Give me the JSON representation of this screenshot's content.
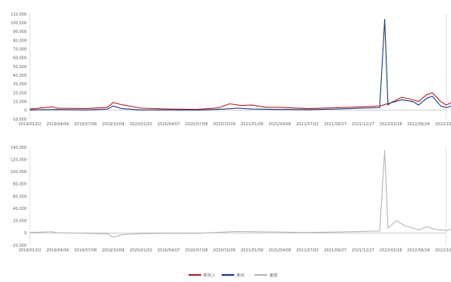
{
  "chart_data": [
    {
      "type": "line",
      "x_labels": [
        "2019/01/02",
        "2019/04/04",
        "2019/07/08",
        "2019/10/08",
        "2020/01/02",
        "2020/04/07",
        "2020/07/08",
        "2020/10/09",
        "2021/01/09",
        "2021/04/06",
        "2021/07/02",
        "2021/09/27",
        "2021/12/27",
        "2022/03/28",
        "2022/06/24",
        "2022/10/21"
      ],
      "ylim": [
        -10000,
        110000
      ],
      "yticks": [
        "-10,000",
        "0",
        "10,000",
        "20,000",
        "30,000",
        "40,000",
        "50,000",
        "60,000",
        "70,000",
        "80,000",
        "90,000",
        "100,000",
        "110,000"
      ],
      "ytick_values": [
        -10000,
        0,
        10000,
        20000,
        30000,
        40000,
        50000,
        60000,
        70000,
        80000,
        90000,
        100000,
        110000
      ],
      "grid": false,
      "series": [
        {
          "name": "新买入",
          "color": "#c0202c",
          "points": [
            [
              0,
              1500
            ],
            [
              0.8,
              4000
            ],
            [
              1,
              2500
            ],
            [
              2,
              2000
            ],
            [
              2.8,
              3500
            ],
            [
              3,
              9000
            ],
            [
              3.3,
              6500
            ],
            [
              4,
              2500
            ],
            [
              5,
              1500
            ],
            [
              6,
              1000
            ],
            [
              6.8,
              3000
            ],
            [
              7.2,
              7500
            ],
            [
              7.6,
              5500
            ],
            [
              8,
              6000
            ],
            [
              8.5,
              3500
            ],
            [
              9,
              3500
            ],
            [
              10,
              2000
            ],
            [
              11,
              3000
            ],
            [
              12,
              4000
            ],
            [
              12.6,
              5000
            ],
            [
              13,
              8500
            ],
            [
              13.4,
              15000
            ],
            [
              13.8,
              12000
            ],
            [
              14,
              10000
            ],
            [
              14.3,
              18000
            ],
            [
              14.5,
              20000
            ],
            [
              14.8,
              10000
            ],
            [
              15,
              6000
            ],
            [
              15.5,
              14000
            ],
            [
              15.8,
              9000
            ],
            [
              16,
              8000
            ]
          ]
        },
        {
          "name": "卖出",
          "color": "#1f3c88",
          "points": [
            [
              0,
              500
            ],
            [
              1,
              1000
            ],
            [
              2,
              500
            ],
            [
              2.8,
              1500
            ],
            [
              3,
              5000
            ],
            [
              3.3,
              2000
            ],
            [
              4,
              500
            ],
            [
              5,
              500
            ],
            [
              6,
              200
            ],
            [
              7,
              1500
            ],
            [
              7.5,
              2500
            ],
            [
              8,
              1500
            ],
            [
              9,
              1000
            ],
            [
              10,
              800
            ],
            [
              11,
              1500
            ],
            [
              12,
              2500
            ],
            [
              12.6,
              3000
            ],
            [
              12.78,
              104000
            ],
            [
              12.9,
              6000
            ],
            [
              13,
              8500
            ],
            [
              13.4,
              12000
            ],
            [
              13.8,
              10000
            ],
            [
              14,
              6000
            ],
            [
              14.3,
              14000
            ],
            [
              14.5,
              16000
            ],
            [
              14.8,
              5000
            ],
            [
              15,
              3000
            ],
            [
              15.5,
              8000
            ],
            [
              15.8,
              4000
            ],
            [
              16,
              3000
            ]
          ]
        }
      ]
    },
    {
      "type": "line",
      "x_labels": [
        "2019/01/02",
        "2019/04/04",
        "2019/07/08",
        "2019/10/08",
        "2020/01/02",
        "2020/04/07",
        "2020/07/08",
        "2020/10/09",
        "2021/01/09",
        "2021/04/06",
        "2021/07/02",
        "2021/09/27",
        "2021/12/27",
        "2022/03/28",
        "2022/06/24",
        "2022/10/21"
      ],
      "ylim": [
        -20000,
        140000
      ],
      "yticks": [
        "-20,000",
        "0",
        "20,000",
        "40,000",
        "60,000",
        "80,000",
        "100,000",
        "120,000",
        "140,000"
      ],
      "ytick_values": [
        -20000,
        0,
        20000,
        40000,
        60000,
        80000,
        100000,
        120000,
        140000
      ],
      "grid": false,
      "series": [
        {
          "name": "差值",
          "color": "#b8b8b8",
          "points": [
            [
              0,
              800
            ],
            [
              0.8,
              2000
            ],
            [
              1,
              500
            ],
            [
              2,
              -500
            ],
            [
              2.8,
              -1500
            ],
            [
              3,
              -7000
            ],
            [
              3.3,
              -3000
            ],
            [
              4,
              -1000
            ],
            [
              5,
              -500
            ],
            [
              6,
              -800
            ],
            [
              7,
              1500
            ],
            [
              7.5,
              2500
            ],
            [
              8,
              2000
            ],
            [
              9,
              1500
            ],
            [
              10,
              800
            ],
            [
              11,
              1500
            ],
            [
              12,
              2500
            ],
            [
              12.6,
              3000
            ],
            [
              12.78,
              135000
            ],
            [
              12.9,
              8000
            ],
            [
              13,
              12000
            ],
            [
              13.2,
              20000
            ],
            [
              13.5,
              12000
            ],
            [
              13.8,
              8000
            ],
            [
              14,
              5000
            ],
            [
              14.3,
              10000
            ],
            [
              14.6,
              6000
            ],
            [
              15,
              4000
            ],
            [
              15.4,
              8000
            ],
            [
              15.8,
              3000
            ],
            [
              16,
              2500
            ]
          ]
        }
      ]
    }
  ],
  "legend": {
    "position": "bottom-center"
  }
}
